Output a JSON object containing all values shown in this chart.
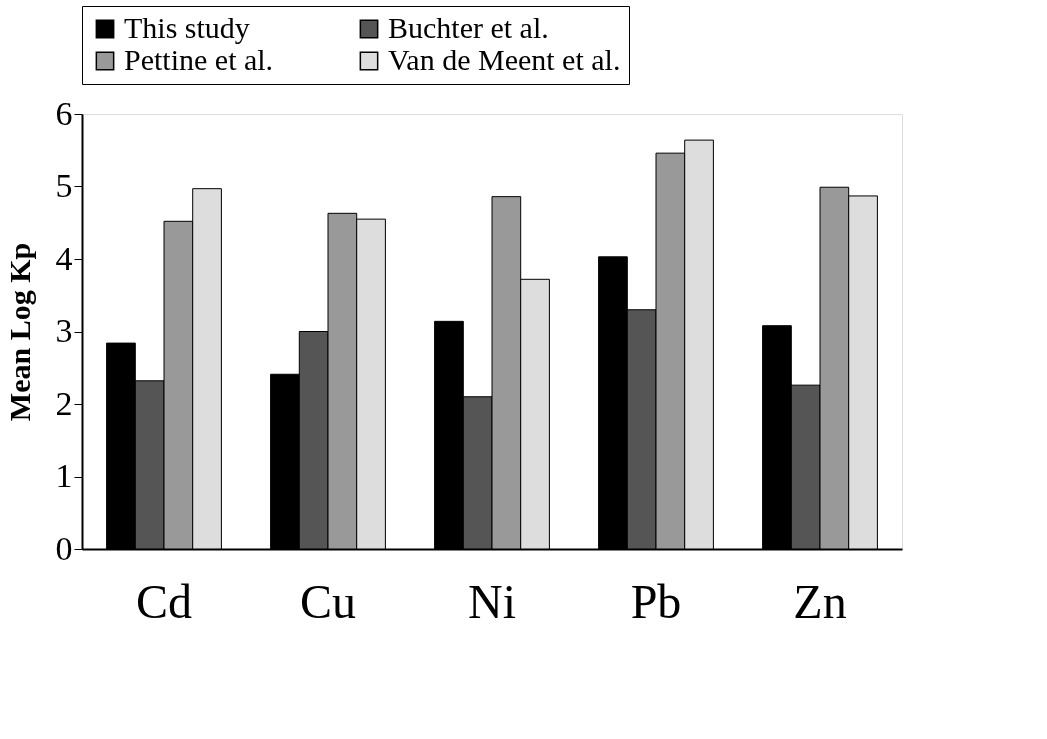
{
  "chart_data": {
    "type": "bar",
    "ylabel": "Mean Log Kp",
    "categories": [
      "Cd",
      "Cu",
      "Ni",
      "Pb",
      "Zn"
    ],
    "series": [
      {
        "name": "This study",
        "color": "#000000",
        "values": [
          2.84,
          2.41,
          3.14,
          4.03,
          3.08
        ]
      },
      {
        "name": "Buchter et al.",
        "color": "#555555",
        "values": [
          2.32,
          3.0,
          2.1,
          3.3,
          2.26
        ]
      },
      {
        "name": "Pettine et al.",
        "color": "#999999",
        "values": [
          4.52,
          4.63,
          4.86,
          5.46,
          4.99
        ]
      },
      {
        "name": "Van de Meent et al.",
        "color": "#dddddd",
        "values": [
          4.97,
          4.55,
          3.72,
          5.64,
          4.87
        ]
      }
    ],
    "ylim": [
      0,
      6
    ],
    "yticks": [
      0,
      1,
      2,
      3,
      4,
      5,
      6
    ],
    "grid": false,
    "legend": "top"
  }
}
